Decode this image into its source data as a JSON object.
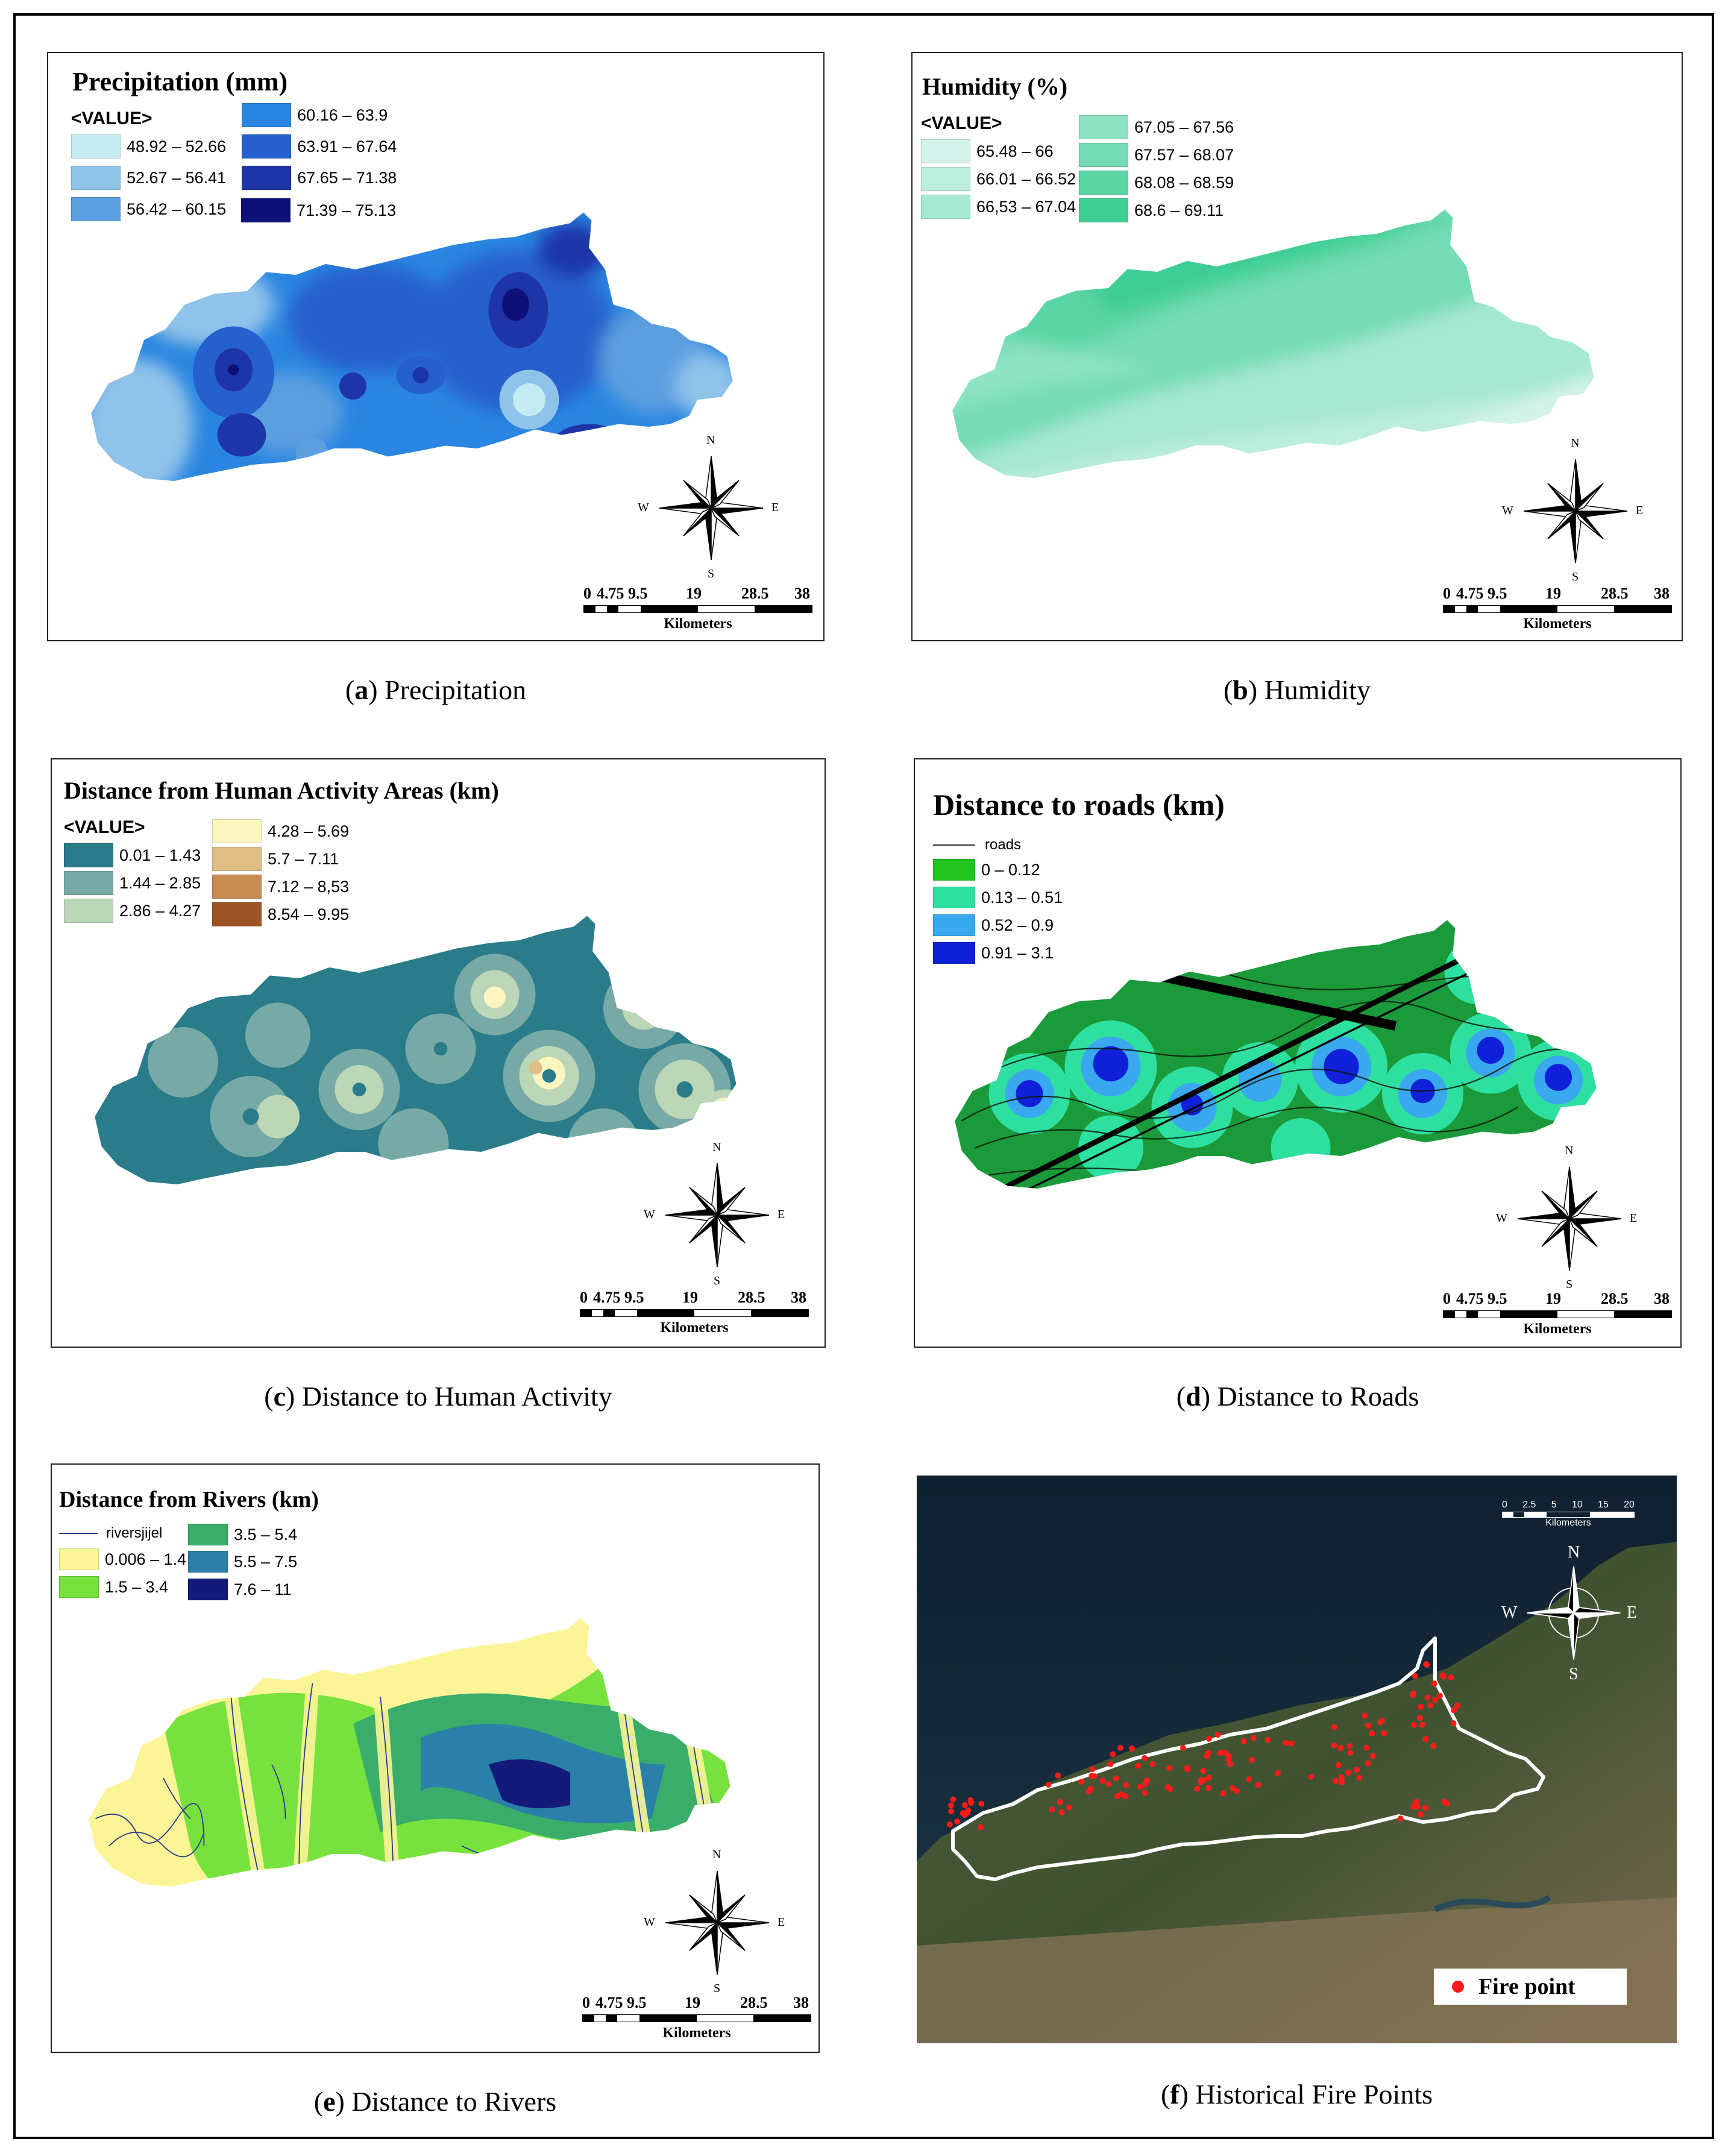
{
  "panels": {
    "a": {
      "title": "Precipitation (mm)",
      "legend_header": "<VALUE>",
      "legend": [
        {
          "label": "48.92 – 52.66",
          "color": "#c6ecf3"
        },
        {
          "label": "52.67 – 56.41",
          "color": "#8fc3ea"
        },
        {
          "label": "56.42 – 60.15",
          "color": "#5b9fe0"
        },
        {
          "label": "60.16 – 63.9",
          "color": "#2a86e0"
        },
        {
          "label": "63.91 – 67.64",
          "color": "#2660cc"
        },
        {
          "label": "67.65 – 71.38",
          "color": "#1e35a8"
        },
        {
          "label": "71.39 – 75.13",
          "color": "#0f0f78"
        }
      ],
      "caption_letter": "a",
      "caption_text": " Precipitation"
    },
    "b": {
      "title": "Humidity (%)",
      "legend_header": "<VALUE>",
      "legend": [
        {
          "label": "65.48 – 66",
          "color": "#d4f3ea"
        },
        {
          "label": "66.01 – 66.52",
          "color": "#bdeedd"
        },
        {
          "label": "66,53 – 67.04",
          "color": "#a6e8d2"
        },
        {
          "label": "67.05 – 67.56",
          "color": "#8ee3c3"
        },
        {
          "label": "67.57 – 68.07",
          "color": "#74dcb5"
        },
        {
          "label": "68.08 – 68.59",
          "color": "#5ad5a5"
        },
        {
          "label": "68.6 – 69.11",
          "color": "#3ece95"
        }
      ],
      "caption_letter": "b",
      "caption_text": " Humidity"
    },
    "c": {
      "title": "Distance from Human Activity Areas (km)",
      "legend_header": "<VALUE>",
      "legend": [
        {
          "label": "0.01 – 1.43",
          "color": "#2a7c8a"
        },
        {
          "label": "1.44 – 2.85",
          "color": "#77aaa6"
        },
        {
          "label": "2.86 – 4.27",
          "color": "#bcd6b8"
        },
        {
          "label": "4.28 – 5.69",
          "color": "#fbf5c0"
        },
        {
          "label": "5.7 – 7.11",
          "color": "#e0bf86"
        },
        {
          "label": "7.12 – 8,53",
          "color": "#c88b52"
        },
        {
          "label": "8.54 – 9.95",
          "color": "#9c5426"
        }
      ],
      "caption_letter": "c",
      "caption_text": " Distance to Human Activity"
    },
    "d": {
      "title": "Distance to roads (km)",
      "legend_line_label": "roads",
      "legend": [
        {
          "label": "0 – 0.12",
          "color": "#22c41e"
        },
        {
          "label": "0.13 – 0.51",
          "color": "#2ee0a0"
        },
        {
          "label": "0.52 – 0.9",
          "color": "#3aa8ee"
        },
        {
          "label": "0.91 – 3.1",
          "color": "#1020d8"
        }
      ],
      "caption_letter": "d",
      "caption_text": " Distance to Roads"
    },
    "e": {
      "title": "Distance from Rivers (km)",
      "legend_line_label": "riversjijel",
      "legend": [
        {
          "label": "0.006 – 1.4",
          "color": "#fbf597"
        },
        {
          "label": "1.5 – 3.4",
          "color": "#77e23e"
        },
        {
          "label": "3.5 – 5.4",
          "color": "#3aad6a"
        },
        {
          "label": "5.5 – 7.5",
          "color": "#2a80a8"
        },
        {
          "label": "7.6 – 11",
          "color": "#141a7a"
        }
      ],
      "caption_letter": "e",
      "caption_text": " Distance to Rivers"
    },
    "f": {
      "scale_ticks": [
        "0",
        "2.5",
        "5",
        "10",
        "15",
        "20"
      ],
      "scale_unit": "Kilometers",
      "legend_label": "Fire point",
      "point_color": "#ff1a1a",
      "caption_letter": "f",
      "caption_text": " Historical Fire Points"
    }
  },
  "scalebar": {
    "ticks": [
      "0",
      "4.75",
      "9.5",
      "19",
      "28.5",
      "38"
    ],
    "unit": "Kilometers"
  },
  "compass": {
    "n": "N",
    "s": "S",
    "e": "E",
    "w": "W"
  },
  "colors": {
    "border": "#000000",
    "region_outline": "#ffffff"
  }
}
